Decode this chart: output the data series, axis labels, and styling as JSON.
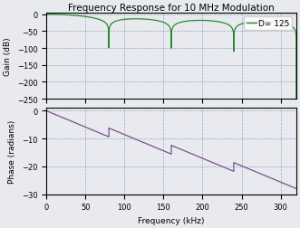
{
  "title": "Frequency Response for 10 MHz Modulation",
  "legend_label": "D= 125",
  "gain_ylabel": "Gain (dB)",
  "phase_ylabel": "Phase (radians)",
  "xlabel": "Frequency (kHz)",
  "xlim": [
    0,
    320
  ],
  "gain_ylim": [
    -250,
    5
  ],
  "phase_ylim": [
    -30,
    1
  ],
  "gain_yticks": [
    0,
    -50,
    -100,
    -150,
    -200,
    -250
  ],
  "phase_yticks": [
    0,
    -10,
    -20,
    -30
  ],
  "xticks": [
    0,
    50,
    100,
    150,
    200,
    250,
    300
  ],
  "gain_color": "#2a8a2a",
  "phase_color": "#7B4F8B",
  "bg_color": "#e8eaf0",
  "grid_color": "#8899aa",
  "D": 125,
  "fs_kHz": 10000,
  "title_fontsize": 7.5,
  "label_fontsize": 6.5,
  "tick_fontsize": 6
}
